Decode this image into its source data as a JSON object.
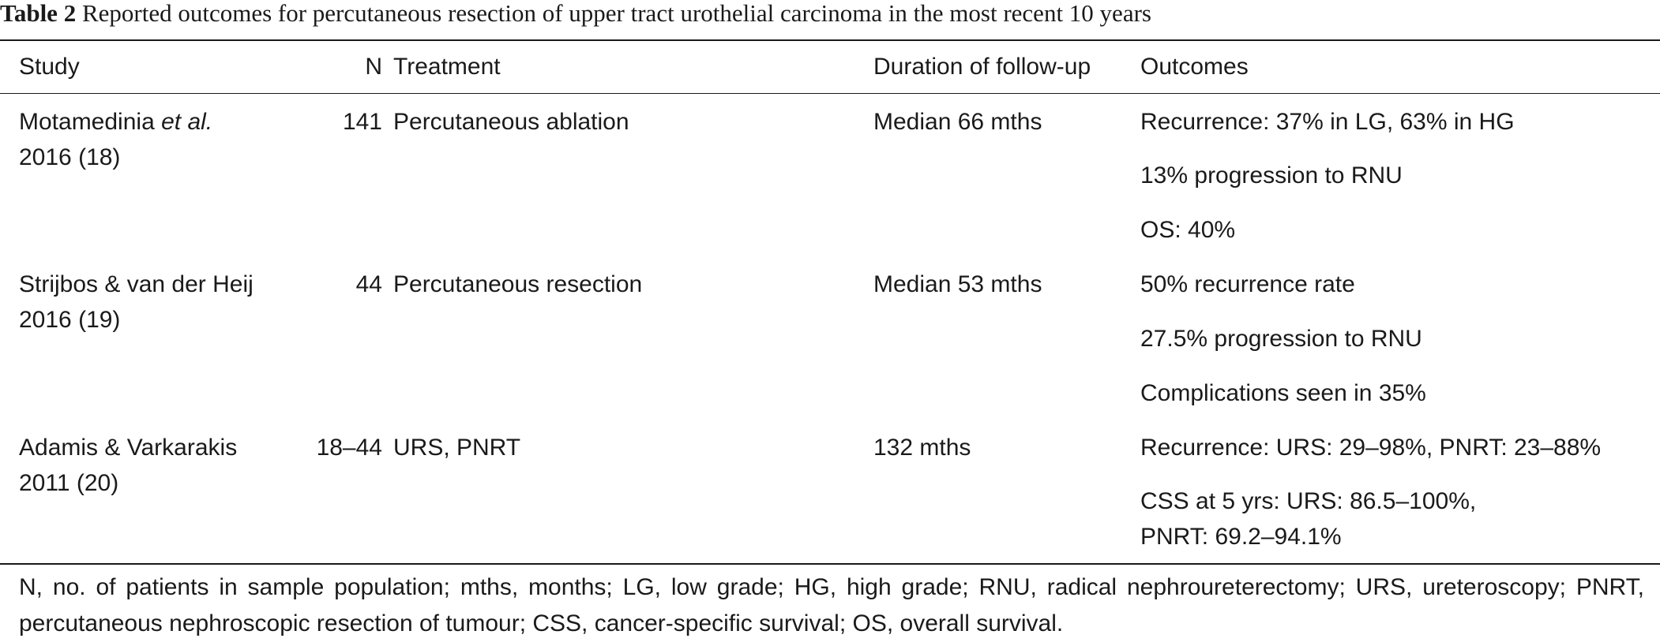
{
  "caption": {
    "label": "Table 2",
    "text": " Reported outcomes for percutaneous resection of upper tract urothelial carcinoma in the most recent 10 years"
  },
  "headers": {
    "study": "Study",
    "n": "N",
    "treatment": "Treatment",
    "duration": "Duration of follow-up",
    "outcomes": "Outcomes"
  },
  "rows": [
    {
      "study_name": "Motamedinia ",
      "study_italic": "et al.",
      "study_year": "2016 (18)",
      "n": "141",
      "treatment": "Percutaneous ablation",
      "duration": "Median 66 mths",
      "outcomes": [
        "Recurrence: 37% in LG, 63% in HG",
        "13% progression to RNU",
        "OS: 40%"
      ]
    },
    {
      "study_name": "Strijbos & van der Heij",
      "study_year": "2016 (19)",
      "n": "44",
      "treatment": "Percutaneous resection",
      "duration": "Median 53 mths",
      "outcomes": [
        "50% recurrence rate",
        "27.5% progression to RNU",
        "Complications seen in 35%"
      ]
    },
    {
      "study_name": "Adamis & Varkarakis",
      "study_year": "2011 (20)",
      "n": "18–44",
      "treatment": "URS, PNRT",
      "duration": "132 mths",
      "outcomes": [
        "Recurrence: URS: 29–98%, PNRT: 23–88%",
        "CSS at 5 yrs: URS: 86.5–100%,",
        "PNRT: 69.2–94.1%"
      ]
    }
  ],
  "footnote": "N, no. of patients in sample population; mths, months; LG, low grade; HG, high grade; RNU, radical nephroureterectomy; URS, ureteroscopy; PNRT, percutaneous nephroscopic resection of tumour; CSS, cancer-specific survival; OS, overall survival."
}
